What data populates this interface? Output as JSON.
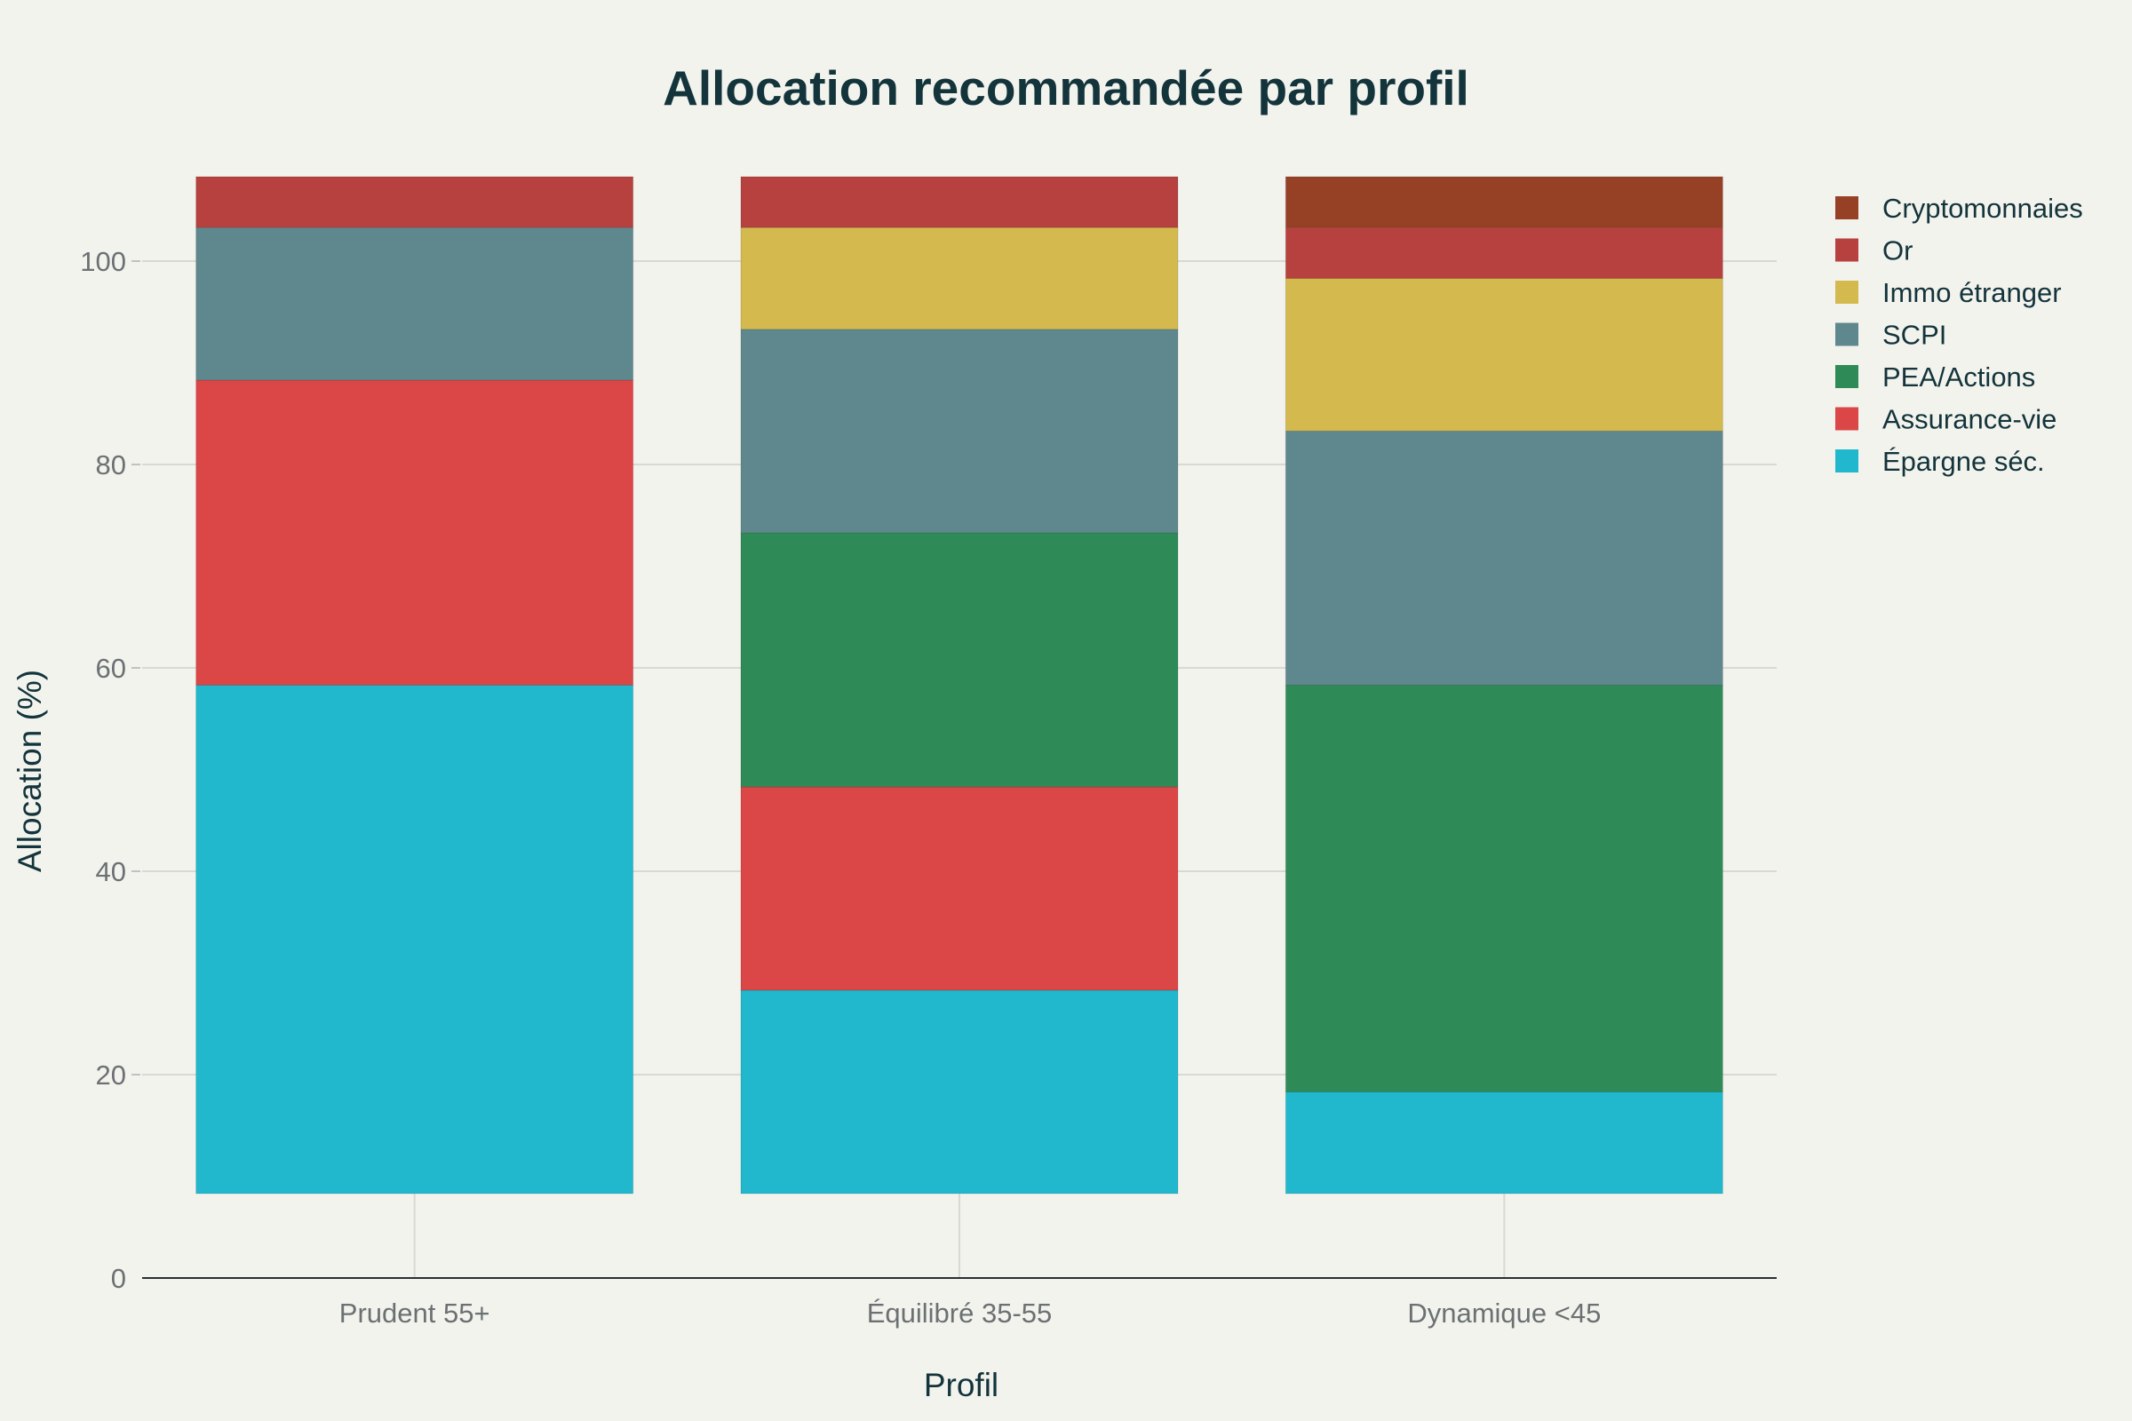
{
  "chart_data": {
    "type": "bar",
    "stacked": true,
    "title": "Allocation recommandée par profil",
    "xlabel": "Profil",
    "ylabel": "Allocation (%)",
    "categories": [
      "Prudent 55+",
      "Équilibré 35-55",
      "Dynamique <45"
    ],
    "ylim": [
      0,
      108
    ],
    "yticks": [
      0,
      20,
      40,
      60,
      80,
      100
    ],
    "base": 8.3,
    "grid": true,
    "legend_position": "top-right",
    "series": [
      {
        "name": "Épargne séc.",
        "color": "#21b8ce",
        "values": [
          50,
          20,
          10
        ]
      },
      {
        "name": "Assurance-vie",
        "color": "#db4646",
        "values": [
          30,
          20,
          0
        ]
      },
      {
        "name": "PEA/Actions",
        "color": "#2e8b57",
        "values": [
          0,
          25,
          40
        ]
      },
      {
        "name": "SCPI",
        "color": "#5e888e",
        "values": [
          15,
          20,
          25
        ]
      },
      {
        "name": "Immo étranger",
        "color": "#d4b94e",
        "values": [
          0,
          10,
          15
        ]
      },
      {
        "name": "Or",
        "color": "#b6413e",
        "values": [
          5,
          5,
          5
        ]
      },
      {
        "name": "Cryptomonnaies",
        "color": "#964025",
        "values": [
          0,
          0,
          5
        ]
      }
    ]
  }
}
